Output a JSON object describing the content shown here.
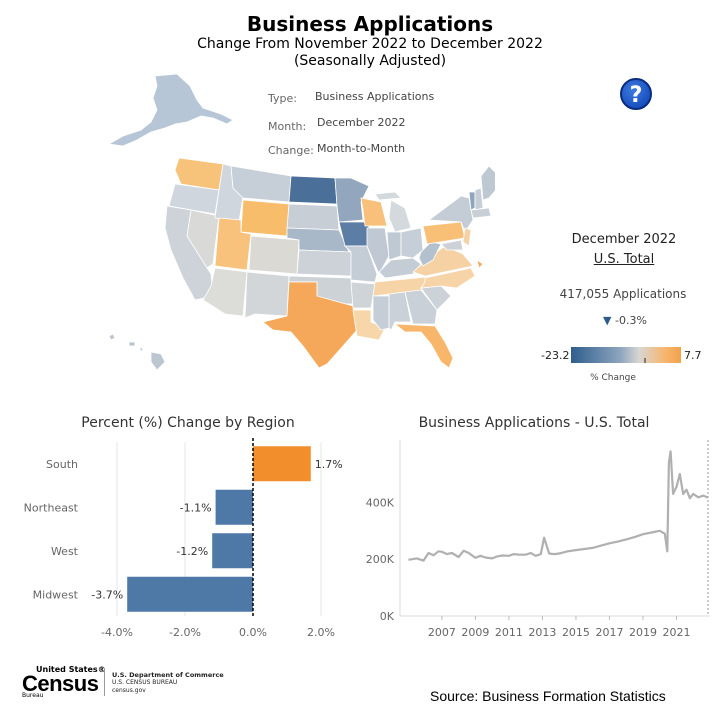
{
  "header": {
    "title": "Business Applications",
    "subtitle1": "Change From November 2022 to December 2022",
    "subtitle2": "(Seasonally Adjusted)"
  },
  "filters": {
    "type_label": "Type:",
    "type_value": "Business Applications",
    "month_label": "Month:",
    "month_value": "December 2022",
    "change_label": "Change:",
    "change_value": "Month-to-Month"
  },
  "help_button": {
    "label": "?",
    "icon": "question-circle-icon"
  },
  "total_panel": {
    "heading": "December 2022",
    "subheading": "U.S. Total",
    "applications": "417,055 Applications",
    "change": "-0.3%",
    "change_arrow": "▼",
    "change_icon": "down-triangle-icon"
  },
  "legend": {
    "min": "-23.2",
    "max": "7.7",
    "title": "% Change",
    "colors": [
      "#2f5e8e",
      "#8ea5be",
      "#d8d6d2",
      "#f7b66f",
      "#f4a24b"
    ]
  },
  "footer": {
    "source": "Source: Business Formation Statistics",
    "logo_united_states": "United States®",
    "logo_census": "Census",
    "logo_bureau": "Bureau",
    "dept_line1": "U.S. Department of Commerce",
    "dept_line2": "U.S. CENSUS BUREAU",
    "dept_line3": "census.gov"
  },
  "chart_data": [
    {
      "type": "bar",
      "orientation": "horizontal",
      "title": "Percent (%) Change by Region",
      "categories": [
        "South",
        "Northeast",
        "West",
        "Midwest"
      ],
      "values": [
        1.7,
        -1.1,
        -1.2,
        -3.7
      ],
      "value_labels": [
        "1.7%",
        "-1.1%",
        "-1.2%",
        "-3.7%"
      ],
      "xlim": [
        -4.5,
        3.0
      ],
      "xticks": [
        -4.0,
        -2.0,
        0.0,
        2.0
      ],
      "xtick_labels": [
        "-4.0%",
        "-2.0%",
        "0.0%",
        "2.0%"
      ],
      "colors": {
        "positive": "#f28e2b",
        "negative": "#4e79a7"
      },
      "grid": true
    },
    {
      "type": "line",
      "title": "Business Applications - U.S. Total",
      "xlim": [
        2004.5,
        2023.0
      ],
      "ylim": [
        0,
        620000
      ],
      "yticks": [
        0,
        200000,
        400000
      ],
      "ytick_labels": [
        "0K",
        "200K",
        "400K"
      ],
      "xticks": [
        2007,
        2009,
        2011,
        2013,
        2015,
        2017,
        2019,
        2021
      ],
      "xtick_labels": [
        "2007",
        "2009",
        "2011",
        "2013",
        "2015",
        "2017",
        "2019",
        "2021"
      ],
      "series": [
        {
          "color": "#b0b0b0",
          "x": [
            2005.0,
            2005.5,
            2005.9,
            2006.2,
            2006.5,
            2006.8,
            2007.0,
            2007.3,
            2007.6,
            2008.0,
            2008.3,
            2008.6,
            2009.0,
            2009.3,
            2009.6,
            2010.0,
            2010.3,
            2010.6,
            2011.0,
            2011.3,
            2011.6,
            2012.0,
            2012.3,
            2012.6,
            2012.9,
            2013.1,
            2013.4,
            2013.7,
            2014.0,
            2014.5,
            2015.0,
            2015.5,
            2016.0,
            2016.5,
            2017.0,
            2017.5,
            2018.0,
            2018.5,
            2019.0,
            2019.5,
            2020.0,
            2020.3,
            2020.45,
            2020.55,
            2020.65,
            2020.8,
            2021.0,
            2021.2,
            2021.4,
            2021.6,
            2021.8,
            2022.0,
            2022.3,
            2022.6,
            2022.9
          ],
          "y": [
            198000,
            203000,
            195000,
            222000,
            214000,
            228000,
            226000,
            218000,
            222000,
            208000,
            230000,
            222000,
            205000,
            212000,
            206000,
            203000,
            210000,
            213000,
            212000,
            218000,
            216000,
            216000,
            222000,
            212000,
            218000,
            276000,
            220000,
            218000,
            220000,
            228000,
            232000,
            236000,
            240000,
            248000,
            256000,
            262000,
            270000,
            278000,
            288000,
            294000,
            300000,
            290000,
            228000,
            540000,
            580000,
            430000,
            455000,
            500000,
            430000,
            445000,
            415000,
            430000,
            418000,
            424000,
            417000
          ]
        }
      ],
      "grid": false
    }
  ],
  "map": {
    "states": [
      {
        "name": "Alaska",
        "color": "#b7c6d6"
      },
      {
        "name": "Hawaii",
        "color": "#bcc6d0"
      },
      {
        "name": "Washington",
        "color": "#f7c27a"
      },
      {
        "name": "Oregon",
        "color": "#cfd6dd"
      },
      {
        "name": "California",
        "color": "#cdd3d9"
      },
      {
        "name": "Nevada",
        "color": "#d9dad8"
      },
      {
        "name": "Idaho",
        "color": "#cfd6dd"
      },
      {
        "name": "Montana",
        "color": "#c6ced7"
      },
      {
        "name": "Wyoming",
        "color": "#f8bd6b"
      },
      {
        "name": "Utah",
        "color": "#f8c27c"
      },
      {
        "name": "Arizona",
        "color": "#dcdcd8"
      },
      {
        "name": "Colorado",
        "color": "#dad9d3"
      },
      {
        "name": "New Mexico",
        "color": "#d2d6d9"
      },
      {
        "name": "North Dakota",
        "color": "#4a6f98"
      },
      {
        "name": "South Dakota",
        "color": "#c7ced6"
      },
      {
        "name": "Nebraska",
        "color": "#a9b8c8"
      },
      {
        "name": "Kansas",
        "color": "#cdd2d8"
      },
      {
        "name": "Oklahoma",
        "color": "#cdd2d7"
      },
      {
        "name": "Texas",
        "color": "#f6a85a"
      },
      {
        "name": "Minnesota",
        "color": "#92a7bd"
      },
      {
        "name": "Iowa",
        "color": "#5c7ea4"
      },
      {
        "name": "Missouri",
        "color": "#c4ccd5"
      },
      {
        "name": "Arkansas",
        "color": "#cfd4d9"
      },
      {
        "name": "Louisiana",
        "color": "#f7d7a9"
      },
      {
        "name": "Wisconsin",
        "color": "#f8c07a"
      },
      {
        "name": "Illinois",
        "color": "#c0c9d3"
      },
      {
        "name": "Michigan",
        "color": "#d4d9de"
      },
      {
        "name": "Indiana",
        "color": "#bfc9d3"
      },
      {
        "name": "Ohio",
        "color": "#c6ced7"
      },
      {
        "name": "Kentucky",
        "color": "#c4ccd5"
      },
      {
        "name": "Tennessee",
        "color": "#f6d4a8"
      },
      {
        "name": "Mississippi",
        "color": "#c5cdd6"
      },
      {
        "name": "Alabama",
        "color": "#cbd1d8"
      },
      {
        "name": "Georgia",
        "color": "#c9d0d7"
      },
      {
        "name": "Florida",
        "color": "#f8b66a"
      },
      {
        "name": "South Carolina",
        "color": "#cdd2d8"
      },
      {
        "name": "North Carolina",
        "color": "#f6d4a8"
      },
      {
        "name": "Virginia",
        "color": "#f5d1a4"
      },
      {
        "name": "West Virginia",
        "color": "#b3c0ce"
      },
      {
        "name": "Pennsylvania",
        "color": "#f8bf76"
      },
      {
        "name": "New York",
        "color": "#c4ccd5"
      },
      {
        "name": "Vermont",
        "color": "#8ea5bd"
      },
      {
        "name": "New Hampshire",
        "color": "#c6ced7"
      },
      {
        "name": "Maine",
        "color": "#bdc8d3"
      },
      {
        "name": "Massachusetts",
        "color": "#c8cfd6"
      },
      {
        "name": "New Jersey",
        "color": "#f4d2a7"
      },
      {
        "name": "Maryland",
        "color": "#cdd2d8"
      },
      {
        "name": "Delaware",
        "color": "#f7a85e"
      }
    ]
  }
}
